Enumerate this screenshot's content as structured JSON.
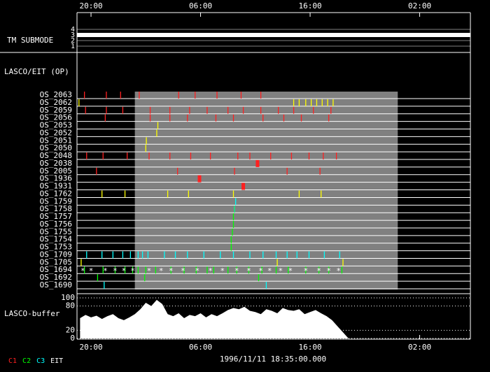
{
  "chart_data": {
    "type": "timeline",
    "xlim": [
      -1.28,
      34.63
    ],
    "xticks": [
      {
        "value": 0,
        "label": "20:00"
      },
      {
        "value": 10,
        "label": "06:00"
      },
      {
        "value": 20,
        "label": "16:00"
      },
      {
        "value": 30,
        "label": "02:00"
      }
    ],
    "timestamp": "1996/11/11 18:35:00.000",
    "shade": [
      4,
      28
    ],
    "tm_submode": {
      "label": "TM SUBMODE",
      "ylim": [
        0.5,
        4.5
      ],
      "yticks": [
        1,
        2,
        3,
        4
      ],
      "value": 3
    },
    "section_label": "LASCO/EIT (OP)",
    "rows": [
      {
        "name": "OS_2063",
        "color": "#ff2020",
        "events": [
          -0.6,
          1.4,
          2.7,
          4.4,
          8.0,
          9.5,
          11.5,
          13.7,
          15.5
        ]
      },
      {
        "name": "OS_2062",
        "color": "#ffff00",
        "events": [
          -1.1,
          18.5,
          19.0,
          19.6,
          20.1,
          20.6,
          21.1,
          21.6,
          22.1
        ]
      },
      {
        "name": "OS_2059",
        "color": "#ff2020",
        "events": [
          -0.5,
          1.4,
          2.9,
          5.4,
          7.2,
          9.0,
          10.6,
          12.5,
          13.9,
          15.5,
          17.1,
          18.5,
          20.3,
          21.9
        ]
      },
      {
        "name": "OS_2056",
        "color": "#ff2020",
        "events": [
          1.3,
          5.4,
          7.2,
          8.8,
          11.4,
          13.0,
          15.7,
          17.6,
          19.2,
          21.7
        ]
      },
      {
        "name": "OS_2053",
        "color": "#ffff00",
        "events": [
          6.1
        ]
      },
      {
        "name": "OS_2052",
        "color": "#ffff00",
        "events": [
          6.0
        ]
      },
      {
        "name": "OS_2051",
        "color": "#ffff00",
        "events": [
          5.05
        ]
      },
      {
        "name": "OS_2050",
        "color": "#ffff00",
        "events": [
          5.0
        ]
      },
      {
        "name": "OS_2048",
        "color": "#ff2020",
        "events": [
          -0.4,
          1.1,
          3.3,
          5.3,
          7.2,
          9.1,
          10.9,
          13.4,
          14.5,
          16.4,
          18.3,
          19.9,
          21.2,
          22.4
        ]
      },
      {
        "name": "OS_2038",
        "color": "#ff2020",
        "thick": true,
        "events": [
          15.2
        ]
      },
      {
        "name": "OS_2005",
        "color": "#ff2020",
        "events": [
          0.5,
          7.9,
          13.1,
          17.9,
          20.9
        ]
      },
      {
        "name": "OS_1936",
        "color": "#ff2020",
        "thick": true,
        "events": [
          9.9
        ]
      },
      {
        "name": "OS_1931",
        "color": "#ff2020",
        "thick": true,
        "events": [
          13.9
        ]
      },
      {
        "name": "OS_1762",
        "color": "#ffff00",
        "events": [
          1.0,
          3.1,
          7.0,
          8.9,
          13.0,
          19.0,
          21.0
        ]
      },
      {
        "name": "OS_1759",
        "color": "#00ffff",
        "events": [
          13.2
        ]
      },
      {
        "name": "OS_1758",
        "color": "#00ff80",
        "events": [
          13.1
        ]
      },
      {
        "name": "OS_1757",
        "color": "#00ff00",
        "events": [
          13.0
        ]
      },
      {
        "name": "OS_1756",
        "color": "#00ff00",
        "events": [
          13.0
        ]
      },
      {
        "name": "OS_1755",
        "color": "#00ff00",
        "events": [
          12.9
        ]
      },
      {
        "name": "OS_1754",
        "color": "#00ff00",
        "events": [
          12.8
        ]
      },
      {
        "name": "OS_1753",
        "color": "#00ff00",
        "events": [
          12.8
        ]
      },
      {
        "name": "OS_1709",
        "color": "#00ffff",
        "events": [
          -0.4,
          1.0,
          2.0,
          2.9,
          3.6,
          4.3,
          4.7,
          5.2,
          6.7,
          7.7,
          8.8,
          10.3,
          11.8,
          13.0,
          14.5,
          15.7,
          16.9,
          17.9,
          18.8,
          19.9,
          21.3,
          22.7
        ]
      },
      {
        "name": "OS_1705",
        "color": "#ffff00",
        "events": [
          -0.9,
          17.0,
          23.0
        ]
      },
      {
        "name": "OS_1694",
        "color": "#00ff00",
        "events": [
          -0.6,
          1.1,
          2.2,
          3.1,
          3.8,
          4.3,
          5.0,
          5.9,
          7.3,
          8.5,
          9.6,
          10.6,
          11.2,
          12.5,
          13.3,
          14.4,
          15.6,
          16.9,
          18.0,
          19.6,
          20.8,
          21.7,
          22.9
        ],
        "stars": [
          -0.75,
          0.0,
          1.3,
          2.2,
          3.0,
          3.8,
          5.3,
          6.4,
          7.3,
          8.4,
          9.7,
          10.9,
          12.0,
          13.3,
          14.4,
          15.5,
          16.3,
          17.3,
          18.2,
          19.6,
          20.8,
          21.7,
          22.6
        ]
      },
      {
        "name": "OS_1692",
        "color": "#00ff00",
        "events": [
          0.6,
          4.9,
          15.3
        ]
      },
      {
        "name": "OS_1690",
        "color": "#00ffff",
        "events": [
          1.2,
          16.0
        ]
      }
    ],
    "star_symbol": "*",
    "buffer": {
      "label": "LASCO-buffer",
      "color": "#ffffff",
      "ylim": [
        0,
        100
      ],
      "yticks": [
        0,
        20,
        80,
        100
      ],
      "x": [
        -1,
        -0.5,
        0,
        0.5,
        1,
        1.5,
        2,
        2.5,
        3,
        3.5,
        4,
        4.5,
        5,
        5.5,
        6,
        6.5,
        7,
        7.5,
        8,
        8.5,
        9,
        9.5,
        10,
        10.5,
        11,
        11.5,
        12,
        12.5,
        13,
        13.5,
        14,
        14.5,
        15,
        15.5,
        16,
        16.5,
        17,
        17.5,
        18,
        18.5,
        19,
        19.5,
        20,
        20.5,
        21,
        21.5,
        22,
        22.5,
        23,
        23.5
      ],
      "values": [
        50,
        58,
        52,
        56,
        48,
        55,
        60,
        50,
        45,
        52,
        60,
        72,
        88,
        80,
        95,
        85,
        60,
        55,
        62,
        50,
        58,
        55,
        62,
        52,
        60,
        55,
        62,
        70,
        75,
        72,
        78,
        68,
        65,
        60,
        72,
        68,
        62,
        75,
        70,
        68,
        72,
        60,
        65,
        70,
        62,
        55,
        45,
        30,
        15,
        0
      ]
    },
    "legend": [
      {
        "name": "C1",
        "color": "#ff2020"
      },
      {
        "name": "C2",
        "color": "#00ff00"
      },
      {
        "name": "C3",
        "color": "#00ffff"
      },
      {
        "name": "EIT",
        "color": "#ffffff"
      }
    ]
  }
}
